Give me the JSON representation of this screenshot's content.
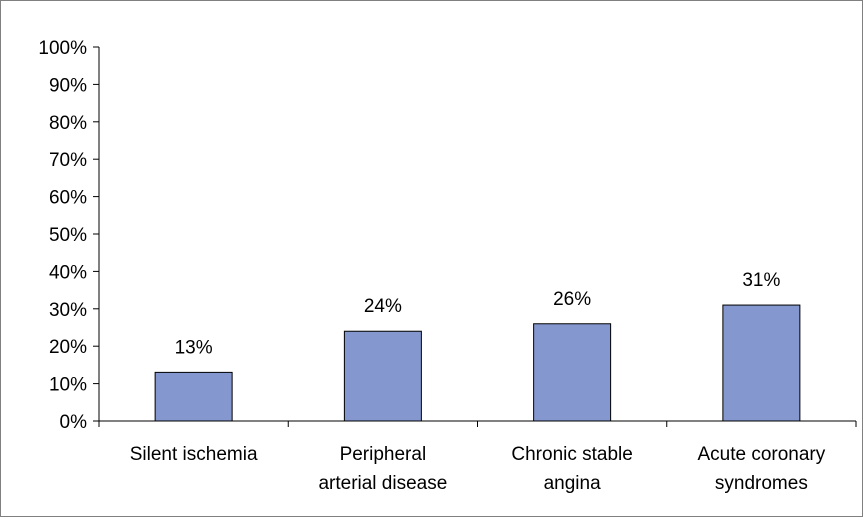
{
  "chart_data": {
    "type": "bar",
    "title": "",
    "xlabel": "",
    "ylabel": "",
    "categories": [
      [
        "Silent ischemia"
      ],
      [
        "Peripheral",
        "arterial disease"
      ],
      [
        "Chronic stable",
        "angina"
      ],
      [
        "Acute coronary",
        "syndromes"
      ]
    ],
    "values": [
      13,
      24,
      26,
      31
    ],
    "data_labels": [
      "13%",
      "24%",
      "26%",
      "31%"
    ],
    "ylim": [
      0,
      100
    ],
    "y_ticks": [
      0,
      10,
      20,
      30,
      40,
      50,
      60,
      70,
      80,
      90,
      100
    ],
    "y_tick_labels": [
      "0%",
      "10%",
      "20%",
      "30%",
      "40%",
      "50%",
      "60%",
      "70%",
      "80%",
      "90%",
      "100%"
    ],
    "grid": false,
    "legend": "none",
    "colors": {
      "bar_fill": "#8497cf",
      "bar_stroke": "#000000",
      "axis": "#000000",
      "frame": "#808080"
    }
  }
}
